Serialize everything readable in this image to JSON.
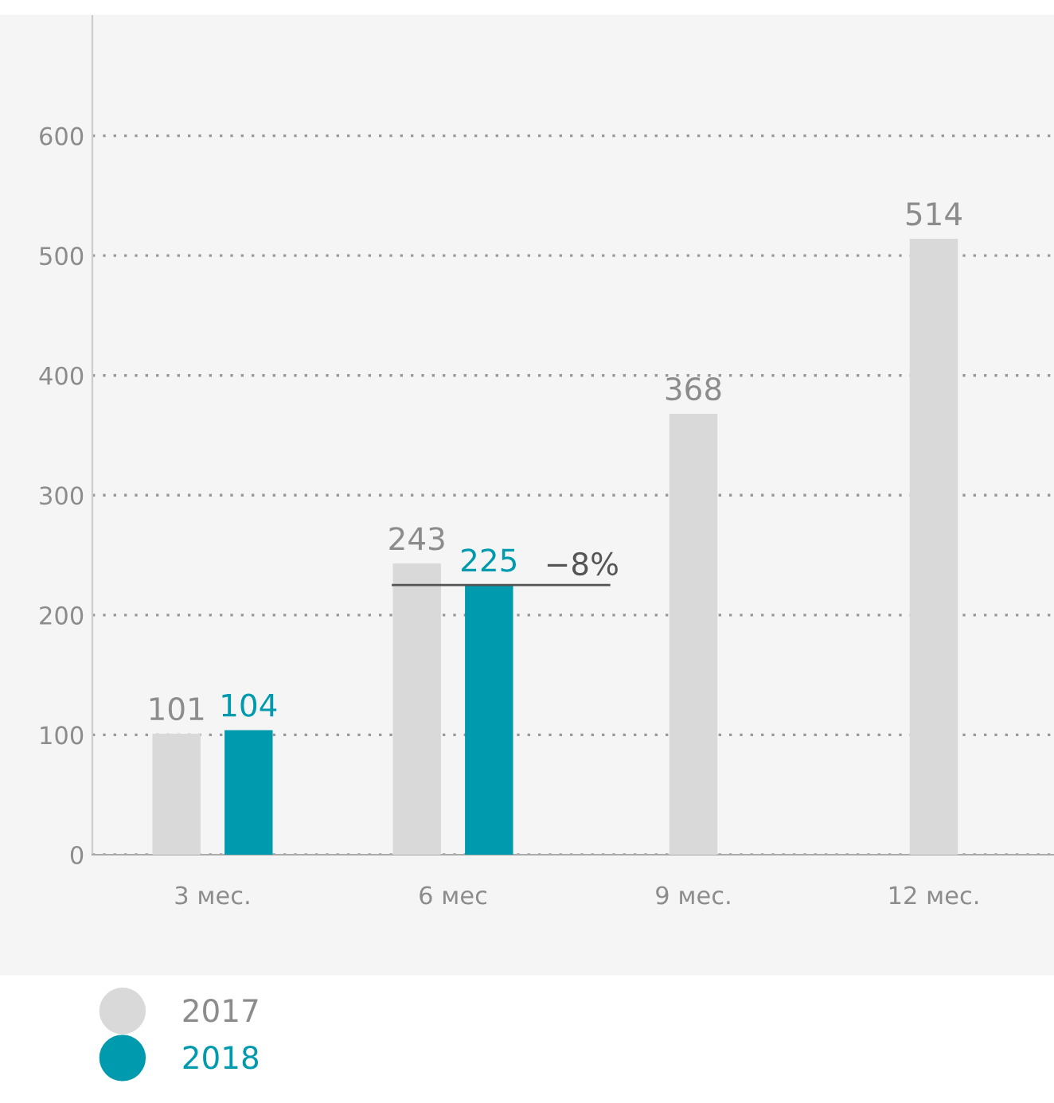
{
  "chart_data": {
    "type": "bar",
    "categories": [
      "3 мес.",
      "6 мес",
      "9 мес.",
      "12 мес."
    ],
    "series": [
      {
        "name": "2017",
        "color": "#d9d9d9",
        "values": [
          101,
          243,
          368,
          514
        ]
      },
      {
        "name": "2018",
        "color": "#009aae",
        "values": [
          104,
          225,
          null,
          null
        ]
      }
    ],
    "ylim": [
      0,
      700
    ],
    "yticks": [
      0,
      100,
      200,
      300,
      400,
      500,
      600
    ],
    "grid": "y",
    "legend": "bottom left",
    "data_labels": true,
    "ref_lines": [
      {
        "axis": "y",
        "value": 225,
        "label": "−8%",
        "color": "#555555"
      }
    ]
  }
}
